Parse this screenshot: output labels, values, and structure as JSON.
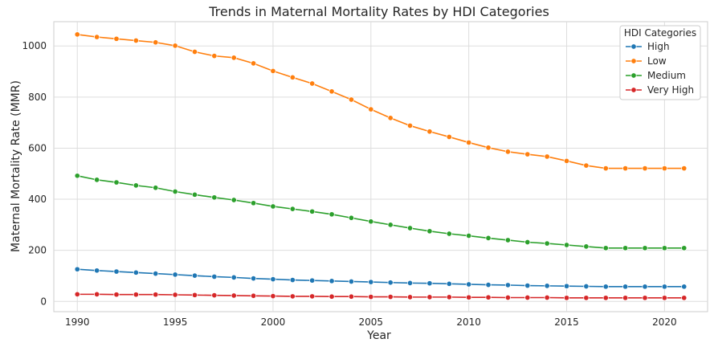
{
  "chart_data": {
    "type": "line",
    "title": "Trends in Maternal Mortality Rates by HDI Categories",
    "xlabel": "Year",
    "ylabel": "Maternal Mortality Rate (MMR)",
    "xlim": [
      1988.8,
      2022.2
    ],
    "ylim": [
      -40,
      1095
    ],
    "x_ticks": [
      1990,
      1995,
      2000,
      2005,
      2010,
      2015,
      2020
    ],
    "y_ticks": [
      0,
      200,
      400,
      600,
      800,
      1000
    ],
    "grid": true,
    "legend": {
      "title": "HDI Categories",
      "position": "top-right"
    },
    "x": [
      1990,
      1991,
      1992,
      1993,
      1994,
      1995,
      1996,
      1997,
      1998,
      1999,
      2000,
      2001,
      2002,
      2003,
      2004,
      2005,
      2006,
      2007,
      2008,
      2009,
      2010,
      2011,
      2012,
      2013,
      2014,
      2015,
      2016,
      2017,
      2018,
      2019,
      2020,
      2021
    ],
    "series": [
      {
        "name": "High",
        "color": "#1f77b4",
        "values": [
          126,
          121,
          117,
          113,
          109,
          105,
          101,
          97,
          94,
          90,
          87,
          84,
          82,
          80,
          78,
          76,
          74,
          72,
          71,
          69,
          67,
          65,
          64,
          62,
          61,
          60,
          59,
          58,
          58,
          58,
          58,
          58
        ]
      },
      {
        "name": "Low",
        "color": "#ff7f0e",
        "values": [
          1045,
          1035,
          1028,
          1021,
          1014,
          1001,
          977,
          961,
          954,
          932,
          902,
          877,
          853,
          822,
          790,
          752,
          718,
          688,
          665,
          644,
          622,
          602,
          586,
          576,
          567,
          550,
          532,
          521,
          521,
          521,
          521,
          521
        ]
      },
      {
        "name": "Medium",
        "color": "#2ca02c",
        "values": [
          492,
          476,
          466,
          454,
          445,
          430,
          418,
          407,
          397,
          385,
          372,
          362,
          352,
          341,
          327,
          313,
          300,
          287,
          275,
          265,
          257,
          248,
          240,
          232,
          227,
          221,
          215,
          209,
          209,
          209,
          209,
          209
        ]
      },
      {
        "name": "Very High",
        "color": "#d62728",
        "values": [
          28,
          28,
          27,
          27,
          27,
          26,
          25,
          24,
          23,
          22,
          21,
          20,
          20,
          19,
          19,
          18,
          18,
          17,
          17,
          17,
          16,
          16,
          15,
          15,
          15,
          14,
          14,
          14,
          14,
          14,
          14,
          14
        ]
      }
    ]
  }
}
